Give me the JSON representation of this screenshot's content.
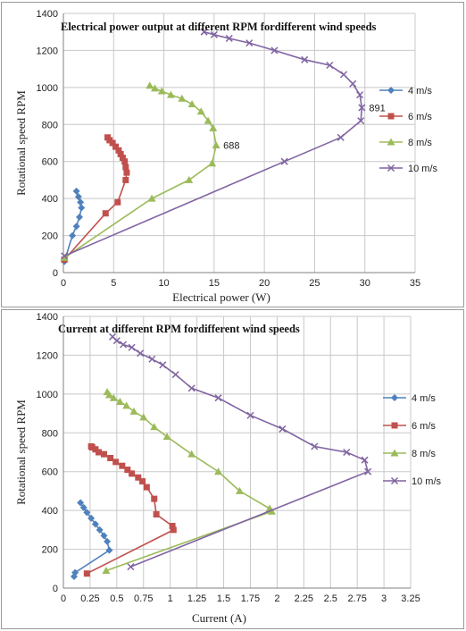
{
  "chart_data": [
    {
      "type": "line",
      "title": "Electrical power output at different RPM fordifferent wind speeds",
      "xlabel": "Electrical power (W)",
      "ylabel": "Rotational speed RPM",
      "xlim": [
        0,
        35
      ],
      "ylim": [
        0,
        1400
      ],
      "xticks": [
        "0",
        "5",
        "10",
        "15",
        "20",
        "25",
        "30",
        "35"
      ],
      "yticks": [
        "0",
        "200",
        "400",
        "600",
        "800",
        "1000",
        "1200",
        "1400"
      ],
      "grid": true,
      "legend": "right",
      "annotations": [
        {
          "text": "688",
          "x": 15.2,
          "y": 688
        },
        {
          "text": "891",
          "x": 29.7,
          "y": 891
        }
      ],
      "series": [
        {
          "name": "4 m/s",
          "color": "#4f81bd",
          "marker": "diamond",
          "x": [
            0.1,
            0.9,
            1.3,
            1.6,
            1.8,
            1.7,
            1.5,
            1.3
          ],
          "y": [
            60,
            200,
            250,
            300,
            350,
            380,
            410,
            440
          ]
        },
        {
          "name": "6 m/s",
          "color": "#c0504d",
          "marker": "square",
          "x": [
            0.1,
            4.2,
            5.4,
            6.2,
            6.3,
            6.2,
            6.1,
            5.9,
            5.7,
            5.5,
            5.2,
            4.9,
            4.6,
            4.4
          ],
          "y": [
            70,
            320,
            380,
            500,
            540,
            570,
            600,
            620,
            640,
            660,
            680,
            700,
            715,
            730
          ]
        },
        {
          "name": "8 m/s",
          "color": "#9bbb59",
          "marker": "triangle",
          "x": [
            0.1,
            8.8,
            12.5,
            14.8,
            15.2,
            14.9,
            14.4,
            13.7,
            12.8,
            11.8,
            10.7,
            9.8,
            9.1,
            8.6
          ],
          "y": [
            80,
            400,
            500,
            590,
            688,
            780,
            820,
            870,
            910,
            940,
            960,
            980,
            995,
            1010
          ]
        },
        {
          "name": "10 m/s",
          "color": "#8064a2",
          "marker": "x",
          "x": [
            0.1,
            22.0,
            27.6,
            29.6,
            29.7,
            29.5,
            28.8,
            27.9,
            26.5,
            24.0,
            21.0,
            18.5,
            16.5,
            15.0,
            14.0
          ],
          "y": [
            90,
            600,
            730,
            820,
            891,
            960,
            1020,
            1070,
            1120,
            1150,
            1200,
            1240,
            1265,
            1285,
            1300
          ]
        }
      ]
    },
    {
      "type": "line",
      "title": "Current at different RPM fordifferent wind speeds",
      "xlabel": "Current (A)",
      "ylabel": "Rotational speed RPM",
      "xlim": [
        0,
        3.25
      ],
      "ylim": [
        0,
        1400
      ],
      "xticks": [
        "0",
        "0.25",
        "0.5",
        "0.75",
        "1",
        "1.25",
        "1.5",
        "1.75",
        "2",
        "2.25",
        "2.5",
        "2.75",
        "3",
        "3.25"
      ],
      "yticks": [
        "0",
        "200",
        "400",
        "600",
        "800",
        "1000",
        "1200",
        "1400"
      ],
      "grid": true,
      "legend": "right",
      "series": [
        {
          "name": "4 m/s",
          "color": "#4f81bd",
          "marker": "diamond",
          "x": [
            0.1,
            0.11,
            0.43,
            0.41,
            0.38,
            0.34,
            0.3,
            0.26,
            0.22,
            0.19,
            0.16
          ],
          "y": [
            60,
            80,
            195,
            240,
            270,
            300,
            330,
            360,
            390,
            415,
            440
          ]
        },
        {
          "name": "6 m/s",
          "color": "#c0504d",
          "marker": "square",
          "x": [
            0.22,
            1.03,
            1.02,
            0.87,
            0.85,
            0.78,
            0.74,
            0.7,
            0.64,
            0.6,
            0.55,
            0.49,
            0.44,
            0.38,
            0.33,
            0.3,
            0.27,
            0.26
          ],
          "y": [
            75,
            300,
            320,
            380,
            460,
            520,
            550,
            570,
            590,
            610,
            630,
            650,
            670,
            690,
            700,
            715,
            725,
            730
          ]
        },
        {
          "name": "8 m/s",
          "color": "#9bbb59",
          "marker": "triangle",
          "x": [
            0.4,
            1.95,
            1.93,
            1.65,
            1.45,
            1.2,
            0.97,
            0.85,
            0.75,
            0.66,
            0.59,
            0.53,
            0.47,
            0.43,
            0.41
          ],
          "y": [
            90,
            395,
            410,
            500,
            600,
            690,
            780,
            830,
            880,
            910,
            940,
            960,
            980,
            995,
            1010
          ]
        },
        {
          "name": "10 m/s",
          "color": "#8064a2",
          "marker": "x",
          "x": [
            0.63,
            2.85,
            2.82,
            2.65,
            2.35,
            2.05,
            1.75,
            1.45,
            1.2,
            1.05,
            0.93,
            0.83,
            0.72,
            0.64,
            0.56,
            0.5,
            0.46
          ],
          "y": [
            110,
            600,
            660,
            700,
            730,
            820,
            890,
            980,
            1030,
            1100,
            1150,
            1180,
            1210,
            1240,
            1255,
            1275,
            1295
          ]
        }
      ]
    }
  ]
}
